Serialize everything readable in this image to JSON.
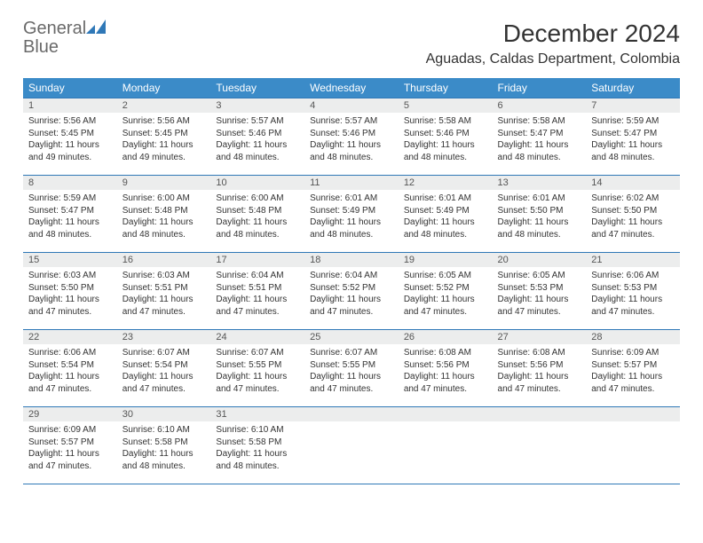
{
  "brand": {
    "part1": "General",
    "part2": "Blue"
  },
  "title": "December 2024",
  "location": "Aguadas, Caldas Department, Colombia",
  "colors": {
    "header_bg": "#3b8bc8",
    "header_text": "#ffffff",
    "rule": "#2f78b7",
    "daynum_bg": "#eceded",
    "logo_gray": "#6a6a6a",
    "logo_blue": "#2f78b7"
  },
  "weekdays": [
    "Sunday",
    "Monday",
    "Tuesday",
    "Wednesday",
    "Thursday",
    "Friday",
    "Saturday"
  ],
  "weeks": [
    [
      {
        "n": "1",
        "sr": "5:56 AM",
        "ss": "5:45 PM",
        "dl": "11 hours and 49 minutes."
      },
      {
        "n": "2",
        "sr": "5:56 AM",
        "ss": "5:45 PM",
        "dl": "11 hours and 49 minutes."
      },
      {
        "n": "3",
        "sr": "5:57 AM",
        "ss": "5:46 PM",
        "dl": "11 hours and 48 minutes."
      },
      {
        "n": "4",
        "sr": "5:57 AM",
        "ss": "5:46 PM",
        "dl": "11 hours and 48 minutes."
      },
      {
        "n": "5",
        "sr": "5:58 AM",
        "ss": "5:46 PM",
        "dl": "11 hours and 48 minutes."
      },
      {
        "n": "6",
        "sr": "5:58 AM",
        "ss": "5:47 PM",
        "dl": "11 hours and 48 minutes."
      },
      {
        "n": "7",
        "sr": "5:59 AM",
        "ss": "5:47 PM",
        "dl": "11 hours and 48 minutes."
      }
    ],
    [
      {
        "n": "8",
        "sr": "5:59 AM",
        "ss": "5:47 PM",
        "dl": "11 hours and 48 minutes."
      },
      {
        "n": "9",
        "sr": "6:00 AM",
        "ss": "5:48 PM",
        "dl": "11 hours and 48 minutes."
      },
      {
        "n": "10",
        "sr": "6:00 AM",
        "ss": "5:48 PM",
        "dl": "11 hours and 48 minutes."
      },
      {
        "n": "11",
        "sr": "6:01 AM",
        "ss": "5:49 PM",
        "dl": "11 hours and 48 minutes."
      },
      {
        "n": "12",
        "sr": "6:01 AM",
        "ss": "5:49 PM",
        "dl": "11 hours and 48 minutes."
      },
      {
        "n": "13",
        "sr": "6:01 AM",
        "ss": "5:50 PM",
        "dl": "11 hours and 48 minutes."
      },
      {
        "n": "14",
        "sr": "6:02 AM",
        "ss": "5:50 PM",
        "dl": "11 hours and 47 minutes."
      }
    ],
    [
      {
        "n": "15",
        "sr": "6:03 AM",
        "ss": "5:50 PM",
        "dl": "11 hours and 47 minutes."
      },
      {
        "n": "16",
        "sr": "6:03 AM",
        "ss": "5:51 PM",
        "dl": "11 hours and 47 minutes."
      },
      {
        "n": "17",
        "sr": "6:04 AM",
        "ss": "5:51 PM",
        "dl": "11 hours and 47 minutes."
      },
      {
        "n": "18",
        "sr": "6:04 AM",
        "ss": "5:52 PM",
        "dl": "11 hours and 47 minutes."
      },
      {
        "n": "19",
        "sr": "6:05 AM",
        "ss": "5:52 PM",
        "dl": "11 hours and 47 minutes."
      },
      {
        "n": "20",
        "sr": "6:05 AM",
        "ss": "5:53 PM",
        "dl": "11 hours and 47 minutes."
      },
      {
        "n": "21",
        "sr": "6:06 AM",
        "ss": "5:53 PM",
        "dl": "11 hours and 47 minutes."
      }
    ],
    [
      {
        "n": "22",
        "sr": "6:06 AM",
        "ss": "5:54 PM",
        "dl": "11 hours and 47 minutes."
      },
      {
        "n": "23",
        "sr": "6:07 AM",
        "ss": "5:54 PM",
        "dl": "11 hours and 47 minutes."
      },
      {
        "n": "24",
        "sr": "6:07 AM",
        "ss": "5:55 PM",
        "dl": "11 hours and 47 minutes."
      },
      {
        "n": "25",
        "sr": "6:07 AM",
        "ss": "5:55 PM",
        "dl": "11 hours and 47 minutes."
      },
      {
        "n": "26",
        "sr": "6:08 AM",
        "ss": "5:56 PM",
        "dl": "11 hours and 47 minutes."
      },
      {
        "n": "27",
        "sr": "6:08 AM",
        "ss": "5:56 PM",
        "dl": "11 hours and 47 minutes."
      },
      {
        "n": "28",
        "sr": "6:09 AM",
        "ss": "5:57 PM",
        "dl": "11 hours and 47 minutes."
      }
    ],
    [
      {
        "n": "29",
        "sr": "6:09 AM",
        "ss": "5:57 PM",
        "dl": "11 hours and 47 minutes."
      },
      {
        "n": "30",
        "sr": "6:10 AM",
        "ss": "5:58 PM",
        "dl": "11 hours and 48 minutes."
      },
      {
        "n": "31",
        "sr": "6:10 AM",
        "ss": "5:58 PM",
        "dl": "11 hours and 48 minutes."
      },
      {
        "empty": true
      },
      {
        "empty": true
      },
      {
        "empty": true
      },
      {
        "empty": true
      }
    ]
  ],
  "labels": {
    "sunrise": "Sunrise:",
    "sunset": "Sunset:",
    "daylight": "Daylight:"
  }
}
